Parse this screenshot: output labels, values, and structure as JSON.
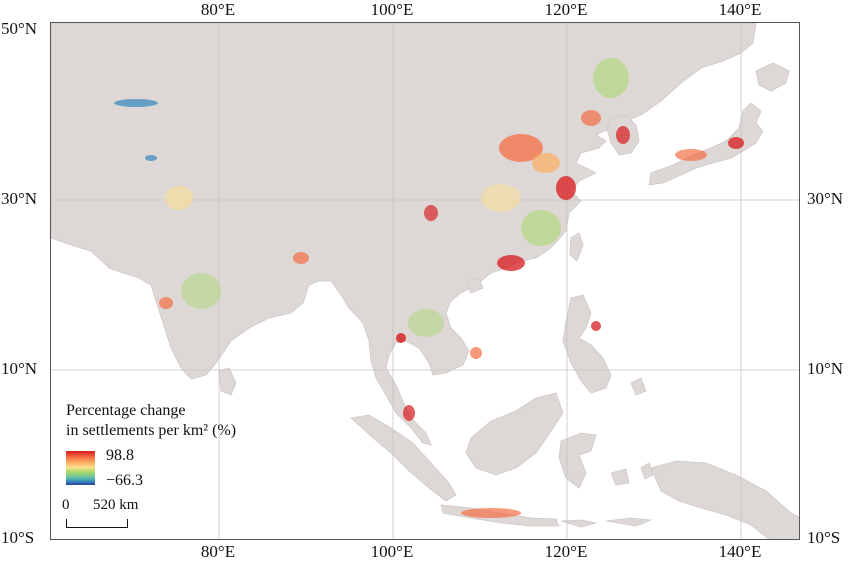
{
  "map": {
    "lon_ticks": [
      "80°E",
      "100°E",
      "120°E",
      "140°E"
    ],
    "lat_ticks_left": [
      "50°N",
      "30°N",
      "10°N",
      "10°S"
    ],
    "lat_ticks_right": [
      "30°N",
      "10°N",
      "10°S"
    ],
    "land_color": "#ddd7d6",
    "sea_color": "#ffffff",
    "grid_color": "#c8c3c3"
  },
  "legend": {
    "title_line1": "Percentage change",
    "title_line2": "in settlements per km² (%)",
    "max_value": "98.8",
    "min_value": "−66.3",
    "colors": [
      "#d7191c",
      "#f46d43",
      "#fdae61",
      "#fee08b",
      "#a6d96a",
      "#66c2a5",
      "#3288bd",
      "#2c3e9c"
    ]
  },
  "scale_bar": {
    "zero_label": "0",
    "distance_label": "520 km"
  }
}
